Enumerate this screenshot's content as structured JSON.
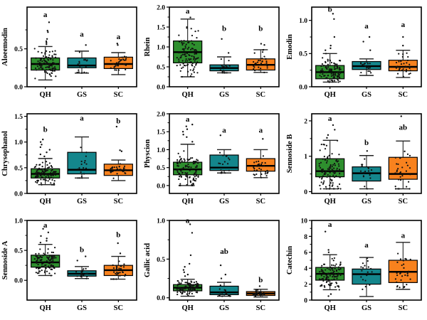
{
  "figure": {
    "background": "#ffffff",
    "frame_color": "#000000",
    "point_color": "#111111",
    "groups": [
      "QH",
      "GS",
      "SC"
    ],
    "group_colors": [
      "#2E8F2E",
      "#14868C",
      "#F8821E"
    ],
    "legend": "none",
    "grid": "off"
  },
  "chart_data": [
    {
      "type": "box",
      "ylabel": "Aloeemodin",
      "ylim": [
        0,
        1.05
      ],
      "yticks": [
        0.0,
        0.5
      ],
      "ytick_labels": [
        "0.0",
        "0.5"
      ],
      "categories": [
        "QH",
        "GS",
        "SC"
      ],
      "series": [
        {
          "group": "QH",
          "letter": "a",
          "letter_y": 0.92,
          "whisker_low": 0.09,
          "q1": 0.22,
          "median": 0.3,
          "q3": 0.38,
          "whisker_high": 0.53,
          "n_points": 100,
          "outliers": [
            0.56,
            0.58,
            0.6,
            0.63,
            0.72,
            0.74,
            0.85
          ]
        },
        {
          "group": "GS",
          "letter": "a",
          "letter_y": 0.66,
          "whisker_low": 0.18,
          "q1": 0.25,
          "median": 0.28,
          "q3": 0.38,
          "whisker_high": 0.47,
          "n_points": 18,
          "outliers": [
            0.55
          ]
        },
        {
          "group": "SC",
          "letter": "a",
          "letter_y": 0.63,
          "whisker_low": 0.16,
          "q1": 0.24,
          "median": 0.3,
          "q3": 0.39,
          "whisker_high": 0.45,
          "n_points": 32,
          "outliers": [
            0.55,
            0.57
          ]
        }
      ]
    },
    {
      "type": "box",
      "ylabel": "Rhein",
      "ylim": [
        0,
        2.0
      ],
      "yticks": [
        0.0,
        0.5,
        1.0,
        1.5,
        2.0
      ],
      "ytick_labels": [
        "0.0",
        "0.5",
        "1.0",
        "1.5",
        "2.0"
      ],
      "categories": [
        "QH",
        "GS",
        "SC"
      ],
      "series": [
        {
          "group": "QH",
          "letter": "a",
          "letter_y": 1.84,
          "whisker_low": 0.25,
          "q1": 0.6,
          "median": 0.87,
          "q3": 1.15,
          "whisker_high": 1.7,
          "n_points": 100,
          "outliers": [
            1.74
          ]
        },
        {
          "group": "GS",
          "letter": "b",
          "letter_y": 1.4,
          "whisker_low": 0.35,
          "q1": 0.4,
          "median": 0.47,
          "q3": 0.55,
          "whisker_high": 0.75,
          "n_points": 18,
          "outliers": [
            0.85,
            1.2
          ]
        },
        {
          "group": "SC",
          "letter": "b",
          "letter_y": 1.4,
          "whisker_low": 0.36,
          "q1": 0.42,
          "median": 0.55,
          "q3": 0.7,
          "whisker_high": 0.93,
          "n_points": 32,
          "outliers": [
            1.05,
            1.08
          ]
        }
      ]
    },
    {
      "type": "box",
      "ylabel": "Emodin",
      "ylim": [
        0,
        1.2
      ],
      "yticks": [
        0.0,
        0.5,
        1.0
      ],
      "ytick_labels": [
        "0.0",
        "0.5",
        "1.0"
      ],
      "categories": [
        "QH",
        "GS",
        "SC"
      ],
      "series": [
        {
          "group": "QH",
          "letter": "b",
          "letter_y": 1.13,
          "whisker_low": 0.07,
          "q1": 0.12,
          "median": 0.22,
          "q3": 0.32,
          "whisker_high": 0.5,
          "n_points": 100,
          "outliers": [
            0.55,
            0.58,
            0.62,
            0.75,
            1.02,
            1.1
          ]
        },
        {
          "group": "GS",
          "letter": "a",
          "letter_y": 0.88,
          "whisker_low": 0.17,
          "q1": 0.26,
          "median": 0.31,
          "q3": 0.38,
          "whisker_high": 0.42,
          "n_points": 18,
          "outliers": [
            0.55,
            0.68,
            0.75
          ]
        },
        {
          "group": "SC",
          "letter": "a",
          "letter_y": 0.9,
          "whisker_low": 0.14,
          "q1": 0.24,
          "median": 0.3,
          "q3": 0.4,
          "whisker_high": 0.55,
          "n_points": 32,
          "outliers": [
            0.62,
            0.75
          ]
        }
      ]
    },
    {
      "type": "box",
      "ylabel": "Chrysophanol",
      "ylim": [
        0,
        1.55
      ],
      "yticks": [
        0.0,
        0.5,
        1.0,
        1.5
      ],
      "ytick_labels": [
        "0.0",
        "0.5",
        "1.0",
        "1.5"
      ],
      "categories": [
        "QH",
        "GS",
        "SC"
      ],
      "series": [
        {
          "group": "QH",
          "letter": "b",
          "letter_y": 1.2,
          "whisker_low": 0.17,
          "q1": 0.3,
          "median": 0.38,
          "q3": 0.48,
          "whisker_high": 0.68,
          "n_points": 100,
          "outliers": [
            0.72,
            0.76,
            0.8,
            0.85,
            0.9,
            0.95,
            1.0,
            1.05
          ]
        },
        {
          "group": "GS",
          "letter": "a",
          "letter_y": 1.42,
          "whisker_low": 0.3,
          "q1": 0.38,
          "median": 0.46,
          "q3": 0.8,
          "whisker_high": 1.1,
          "n_points": 18,
          "outliers": []
        },
        {
          "group": "SC",
          "letter": "b",
          "letter_y": 1.36,
          "whisker_low": 0.25,
          "q1": 0.35,
          "median": 0.45,
          "q3": 0.57,
          "whisker_high": 0.65,
          "n_points": 32,
          "outliers": [
            0.82,
            0.84,
            1.3
          ]
        }
      ]
    },
    {
      "type": "box",
      "ylabel": "Physcion",
      "ylim": [
        -0.22,
        2.0
      ],
      "yticks": [
        0.0,
        0.5,
        1.0,
        1.5,
        2.0
      ],
      "ytick_labels": [
        "0.0",
        "0.5",
        "1.0",
        "1.5",
        "2.0"
      ],
      "categories": [
        "QH",
        "GS",
        "SC"
      ],
      "series": [
        {
          "group": "QH",
          "letter": "a",
          "letter_y": 1.78,
          "whisker_low": 0.0,
          "q1": 0.3,
          "median": 0.45,
          "q3": 0.65,
          "whisker_high": 1.15,
          "n_points": 100,
          "outliers": [
            1.22,
            1.35,
            1.42,
            1.5,
            1.57,
            1.65,
            1.7
          ]
        },
        {
          "group": "GS",
          "letter": "a",
          "letter_y": 1.47,
          "whisker_low": 0.35,
          "q1": 0.42,
          "median": 0.5,
          "q3": 0.85,
          "whisker_high": 1.0,
          "n_points": 18,
          "outliers": [
            1.4
          ]
        },
        {
          "group": "SC",
          "letter": "a",
          "letter_y": 1.47,
          "whisker_low": 0.22,
          "q1": 0.4,
          "median": 0.55,
          "q3": 0.75,
          "whisker_high": 1.0,
          "n_points": 32,
          "outliers": [
            1.3
          ]
        }
      ]
    },
    {
      "type": "box",
      "ylabel": "Sennoside B",
      "ylim": [
        -0.05,
        2.2
      ],
      "yticks": [
        0,
        1,
        2
      ],
      "ytick_labels": [
        "0",
        "1",
        "2"
      ],
      "categories": [
        "QH",
        "GS",
        "SC"
      ],
      "series": [
        {
          "group": "QH",
          "letter": "a",
          "letter_y": 2.0,
          "whisker_low": 0.08,
          "q1": 0.42,
          "median": 0.58,
          "q3": 0.93,
          "whisker_high": 1.45,
          "n_points": 100,
          "outliers": [
            1.52,
            1.6,
            1.75,
            1.88
          ]
        },
        {
          "group": "GS",
          "letter": "b",
          "letter_y": 1.32,
          "whisker_low": 0.08,
          "q1": 0.3,
          "median": 0.52,
          "q3": 0.7,
          "whisker_high": 1.02,
          "n_points": 18,
          "outliers": [
            1.15
          ]
        },
        {
          "group": "SC",
          "letter": "ab",
          "letter_y": 1.75,
          "whisker_low": 0.08,
          "q1": 0.35,
          "median": 0.5,
          "q3": 0.97,
          "whisker_high": 1.43,
          "n_points": 32,
          "outliers": [
            2.13
          ]
        }
      ]
    },
    {
      "type": "box",
      "ylabel": "Sennoside A",
      "ylim": [
        -0.33,
        1.0
      ],
      "yticks": [
        0.0,
        0.5,
        1.0
      ],
      "ytick_labels": [
        "0.0",
        "0.5",
        "1.0"
      ],
      "categories": [
        "QH",
        "GS",
        "SC"
      ],
      "series": [
        {
          "group": "QH",
          "letter": "a",
          "letter_y": 0.88,
          "whisker_low": 0.08,
          "q1": 0.22,
          "median": 0.3,
          "q3": 0.42,
          "whisker_high": 0.6,
          "n_points": 100,
          "outliers": [
            0.63,
            0.66,
            0.7,
            0.74,
            0.8,
            0.86
          ]
        },
        {
          "group": "GS",
          "letter": "b",
          "letter_y": 0.47,
          "whisker_low": 0.03,
          "q1": 0.07,
          "median": 0.11,
          "q3": 0.16,
          "whisker_high": 0.23,
          "n_points": 18,
          "outliers": [
            0.33,
            0.4
          ]
        },
        {
          "group": "SC",
          "letter": "b",
          "letter_y": 0.72,
          "whisker_low": 0.02,
          "q1": 0.08,
          "median": 0.17,
          "q3": 0.25,
          "whisker_high": 0.4,
          "n_points": 32,
          "outliers": [
            0.45,
            0.62
          ]
        }
      ]
    },
    {
      "type": "box",
      "ylabel": "Gallic acid",
      "ylim": [
        -0.03,
        1.0
      ],
      "yticks": [
        0.0,
        0.5,
        1.0
      ],
      "ytick_labels": [
        "0.0",
        "0.5",
        "1.0"
      ],
      "categories": [
        "QH",
        "GS",
        "SC"
      ],
      "series": [
        {
          "group": "QH",
          "letter": "a",
          "letter_y": 0.97,
          "whisker_low": 0.02,
          "q1": 0.09,
          "median": 0.13,
          "q3": 0.17,
          "whisker_high": 0.24,
          "n_points": 100,
          "outliers": [
            0.28,
            0.3,
            0.33,
            0.36,
            0.4,
            0.44,
            0.55,
            0.84,
            0.95
          ]
        },
        {
          "group": "GS",
          "letter": "ab",
          "letter_y": 0.57,
          "whisker_low": 0.02,
          "q1": 0.04,
          "median": 0.07,
          "q3": 0.15,
          "whisker_high": 0.2,
          "n_points": 18,
          "outliers": [
            0.25,
            0.3,
            0.42
          ]
        },
        {
          "group": "SC",
          "letter": "b",
          "letter_y": 0.2,
          "whisker_low": 0.01,
          "q1": 0.03,
          "median": 0.055,
          "q3": 0.08,
          "whisker_high": 0.11,
          "n_points": 32,
          "outliers": [
            0.15
          ]
        }
      ]
    },
    {
      "type": "box",
      "ylabel": "Catechin",
      "ylim": [
        0,
        10
      ],
      "yticks": [
        0,
        2,
        4,
        6,
        8,
        10
      ],
      "ytick_labels": [
        "0",
        "2",
        "4",
        "6",
        "8",
        "10"
      ],
      "categories": [
        "QH",
        "GS",
        "SC"
      ],
      "series": [
        {
          "group": "QH",
          "letter": "a",
          "letter_y": 9.2,
          "whisker_low": 1.3,
          "q1": 2.5,
          "median": 3.3,
          "q3": 4.1,
          "whisker_high": 5.7,
          "n_points": 100,
          "outliers": [
            6.0,
            6.3,
            0.75,
            0.5,
            8.6
          ]
        },
        {
          "group": "GS",
          "letter": "a",
          "letter_y": 6.6,
          "whisker_low": 0.45,
          "q1": 2.0,
          "median": 3.25,
          "q3": 3.9,
          "whisker_high": 5.35,
          "n_points": 18,
          "outliers": []
        },
        {
          "group": "SC",
          "letter": "a",
          "letter_y": 7.8,
          "whisker_low": 1.35,
          "q1": 2.2,
          "median": 3.55,
          "q3": 5.0,
          "whisker_high": 7.25,
          "n_points": 32,
          "outliers": []
        }
      ]
    }
  ]
}
